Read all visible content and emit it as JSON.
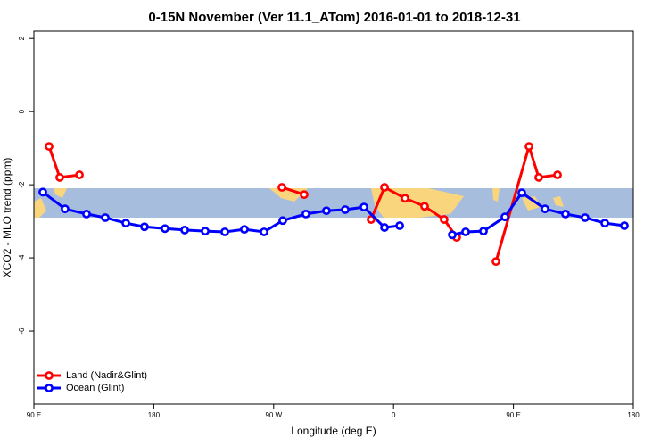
{
  "chart_data": {
    "type": "line",
    "title": "0-15N November (Ver 11.1_ATom)   2016-01-01 to 2018-12-31",
    "x_label": "Longitude (deg E)",
    "y_label": "XCO2 - MLO trend (ppm)",
    "xlim": [
      90,
      540
    ],
    "xticks": [
      {
        "value": 90,
        "label": "90 E"
      },
      180,
      {
        "value": 270,
        "label": "90 W"
      },
      {
        "value": 360,
        "label": "0"
      },
      {
        "value": 450,
        "label": "90 E"
      },
      {
        "value": 540,
        "label": "180"
      }
    ],
    "ylim": [
      -8,
      2.2
    ],
    "yticks": [
      2,
      0,
      -2,
      -4,
      -6
    ],
    "legend": "bottom-left",
    "series": [
      {
        "name": "Land (Nadir&Glint)",
        "color": "#ff0000",
        "x": [
          101.4,
          109.4,
          124.2,
          null,
          276.2,
          292.9,
          null,
          343.1,
          353.2,
          368.6,
          383.3,
          398.0,
          407.4,
          null,
          436.9,
          461.7,
          469.0,
          483.1
        ],
        "values": [
          -0.95,
          -1.8,
          -1.73,
          null,
          -2.07,
          -2.27,
          null,
          -2.95,
          -2.07,
          -2.37,
          -2.59,
          -2.95,
          -3.44,
          null,
          -4.1,
          -0.95,
          -1.8,
          -1.73
        ]
      },
      {
        "name": "Ocean (Glint)",
        "color": "#0000ff",
        "x": [
          96.7,
          113.4,
          129.5,
          143.6,
          159.0,
          173.0,
          188.4,
          203.2,
          218.6,
          233.3,
          248.0,
          262.8,
          276.8,
          294.2,
          309.6,
          323.7,
          337.8,
          353.2,
          364.6,
          null,
          404.1,
          414.1,
          427.5,
          443.6,
          456.3,
          473.7,
          489.1,
          503.8,
          518.6,
          533.3
        ],
        "values": [
          -2.2,
          -2.66,
          -2.8,
          -2.9,
          -3.05,
          -3.15,
          -3.2,
          -3.24,
          -3.27,
          -3.29,
          -3.22,
          -3.29,
          -2.98,
          -2.8,
          -2.71,
          -2.68,
          -2.61,
          -3.17,
          -3.12,
          null,
          -3.37,
          -3.29,
          -3.27,
          -2.88,
          -2.22,
          -2.66,
          -2.8,
          -2.9,
          -3.05,
          -3.12
        ]
      }
    ]
  }
}
